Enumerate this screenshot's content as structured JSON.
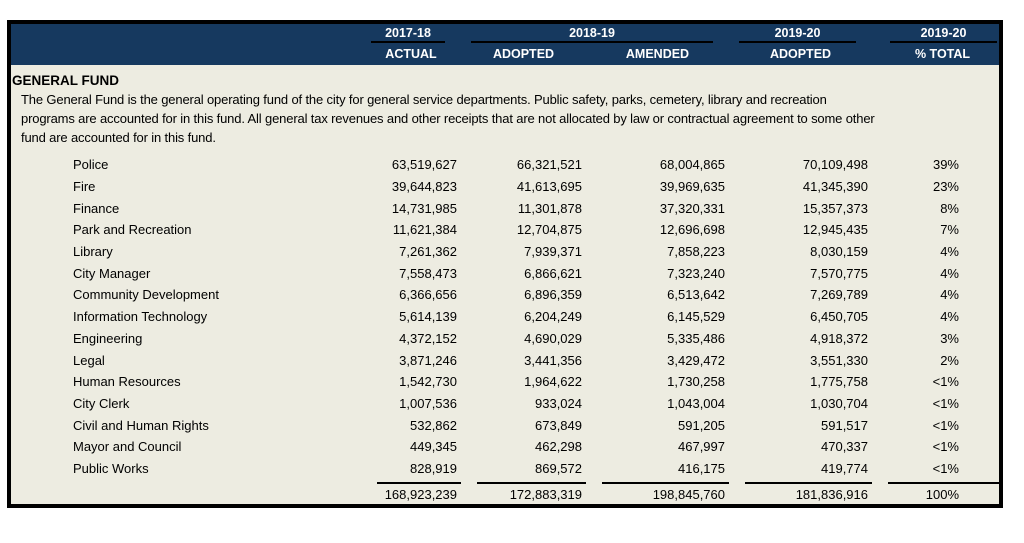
{
  "colors": {
    "header_bg": "#16395F",
    "header_text": "#FFFFFF",
    "body_bg": "#EDECE1",
    "border": "#000000",
    "body_text": "#000000"
  },
  "header": {
    "groups": [
      {
        "year": "2017-18",
        "labels": [
          "ACTUAL"
        ]
      },
      {
        "year": "2018-19",
        "labels": [
          "ADOPTED",
          "AMENDED"
        ]
      },
      {
        "year": "2019-20",
        "labels": [
          "ADOPTED"
        ]
      },
      {
        "year": "2019-20",
        "labels": [
          "% TOTAL"
        ]
      }
    ]
  },
  "section": {
    "title": "GENERAL FUND",
    "description": "The General Fund is the general operating fund of the city for general service departments.  Public safety, parks, cemetery, library and recreation programs are accounted for in this fund.  All general tax revenues and other receipts that are not allocated by law or contractual agreement to some other fund are accounted for in this fund.",
    "description_lines": [
      "The General Fund is the general operating fund of the city for general service departments.  Public safety, parks, cemetery, library and recreation",
      "programs are accounted for in this fund.  All general tax revenues and other receipts that are not allocated by law or contractual agreement to some other",
      "fund are accounted for in this fund."
    ]
  },
  "rows": [
    {
      "label": "Police",
      "values": [
        "63,519,627",
        "66,321,521",
        "68,004,865",
        "70,109,498",
        "39%"
      ]
    },
    {
      "label": "Fire",
      "values": [
        "39,644,823",
        "41,613,695",
        "39,969,635",
        "41,345,390",
        "23%"
      ]
    },
    {
      "label": "Finance",
      "values": [
        "14,731,985",
        "11,301,878",
        "37,320,331",
        "15,357,373",
        "8%"
      ]
    },
    {
      "label": "Park and Recreation",
      "values": [
        "11,621,384",
        "12,704,875",
        "12,696,698",
        "12,945,435",
        "7%"
      ]
    },
    {
      "label": "Library",
      "values": [
        "7,261,362",
        "7,939,371",
        "7,858,223",
        "8,030,159",
        "4%"
      ]
    },
    {
      "label": "City Manager",
      "values": [
        "7,558,473",
        "6,866,621",
        "7,323,240",
        "7,570,775",
        "4%"
      ]
    },
    {
      "label": "Community Development",
      "values": [
        "6,366,656",
        "6,896,359",
        "6,513,642",
        "7,269,789",
        "4%"
      ]
    },
    {
      "label": "Information Technology",
      "values": [
        "5,614,139",
        "6,204,249",
        "6,145,529",
        "6,450,705",
        "4%"
      ]
    },
    {
      "label": "Engineering",
      "values": [
        "4,372,152",
        "4,690,029",
        "5,335,486",
        "4,918,372",
        "3%"
      ]
    },
    {
      "label": "Legal",
      "values": [
        "3,871,246",
        "3,441,356",
        "3,429,472",
        "3,551,330",
        "2%"
      ]
    },
    {
      "label": "Human Resources",
      "values": [
        "1,542,730",
        "1,964,622",
        "1,730,258",
        "1,775,758",
        "<1%"
      ]
    },
    {
      "label": "City Clerk",
      "values": [
        "1,007,536",
        "933,024",
        "1,043,004",
        "1,030,704",
        "<1%"
      ]
    },
    {
      "label": "Civil and Human Rights",
      "values": [
        "532,862",
        "673,849",
        "591,205",
        "591,517",
        "<1%"
      ]
    },
    {
      "label": "Mayor and Council",
      "values": [
        "449,345",
        "462,298",
        "467,997",
        "470,337",
        "<1%"
      ]
    },
    {
      "label": "Public Works",
      "values": [
        "828,919",
        "869,572",
        "416,175",
        "419,774",
        "<1%"
      ]
    }
  ],
  "total": {
    "values": [
      "168,923,239",
      "172,883,319",
      "198,845,760",
      "181,836,916",
      "100%"
    ]
  }
}
